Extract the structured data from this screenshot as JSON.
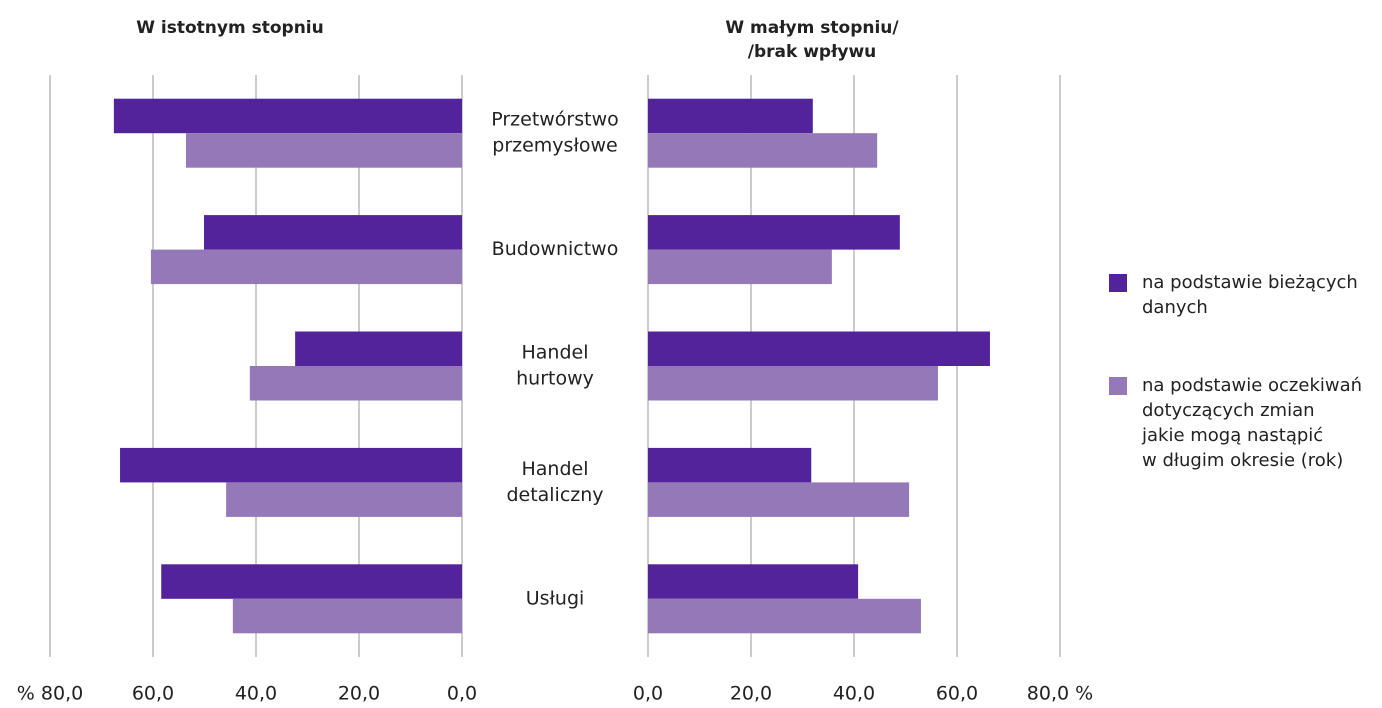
{
  "chart_data": {
    "type": "bar",
    "categories": [
      [
        "Przetwórstwo",
        "przemysłowe"
      ],
      [
        "Budownictwo"
      ],
      [
        "Handel",
        "hurtowy"
      ],
      [
        "Handel",
        "detaliczny"
      ],
      [
        "Usługi"
      ]
    ],
    "legend": [
      {
        "name": [
          "na podstawie bieżących",
          "danych"
        ],
        "color": "#52239a"
      },
      {
        "name": [
          "na podstawie oczekiwań",
          "dotyczących zmian",
          "jakie mogą nastąpić",
          "w długim okresie (rok)"
        ],
        "color": "#9478b8"
      }
    ],
    "grid": true,
    "panels": [
      {
        "title": [
          "W istotnym stopniu"
        ],
        "reversed": true,
        "xlim": [
          0,
          80
        ],
        "xticks": [
          {
            "value": 0,
            "label": "0,0"
          },
          {
            "value": 20,
            "label": "20,0"
          },
          {
            "value": 40,
            "label": "40,0"
          },
          {
            "value": 60,
            "label": "60,0"
          },
          {
            "value": 80,
            "label": "% 80,0"
          }
        ],
        "series": [
          {
            "values": [
              67.6,
              50.1,
              32.4,
              66.4,
              58.4
            ]
          },
          {
            "values": [
              53.6,
              60.4,
              41.2,
              45.8,
              44.5
            ]
          }
        ]
      },
      {
        "title": [
          "W małym stopniu/",
          "/brak wpływu"
        ],
        "reversed": false,
        "xlim": [
          0,
          80
        ],
        "xticks": [
          {
            "value": 0,
            "label": "0,0"
          },
          {
            "value": 20,
            "label": "20,0"
          },
          {
            "value": 40,
            "label": "40,0"
          },
          {
            "value": 60,
            "label": "60,0"
          },
          {
            "value": 80,
            "label": "80,0 %"
          }
        ],
        "series": [
          {
            "values": [
              32.0,
              48.9,
              66.4,
              31.7,
              40.8
            ]
          },
          {
            "values": [
              44.5,
              35.7,
              56.3,
              50.7,
              53.0
            ]
          }
        ]
      }
    ]
  }
}
